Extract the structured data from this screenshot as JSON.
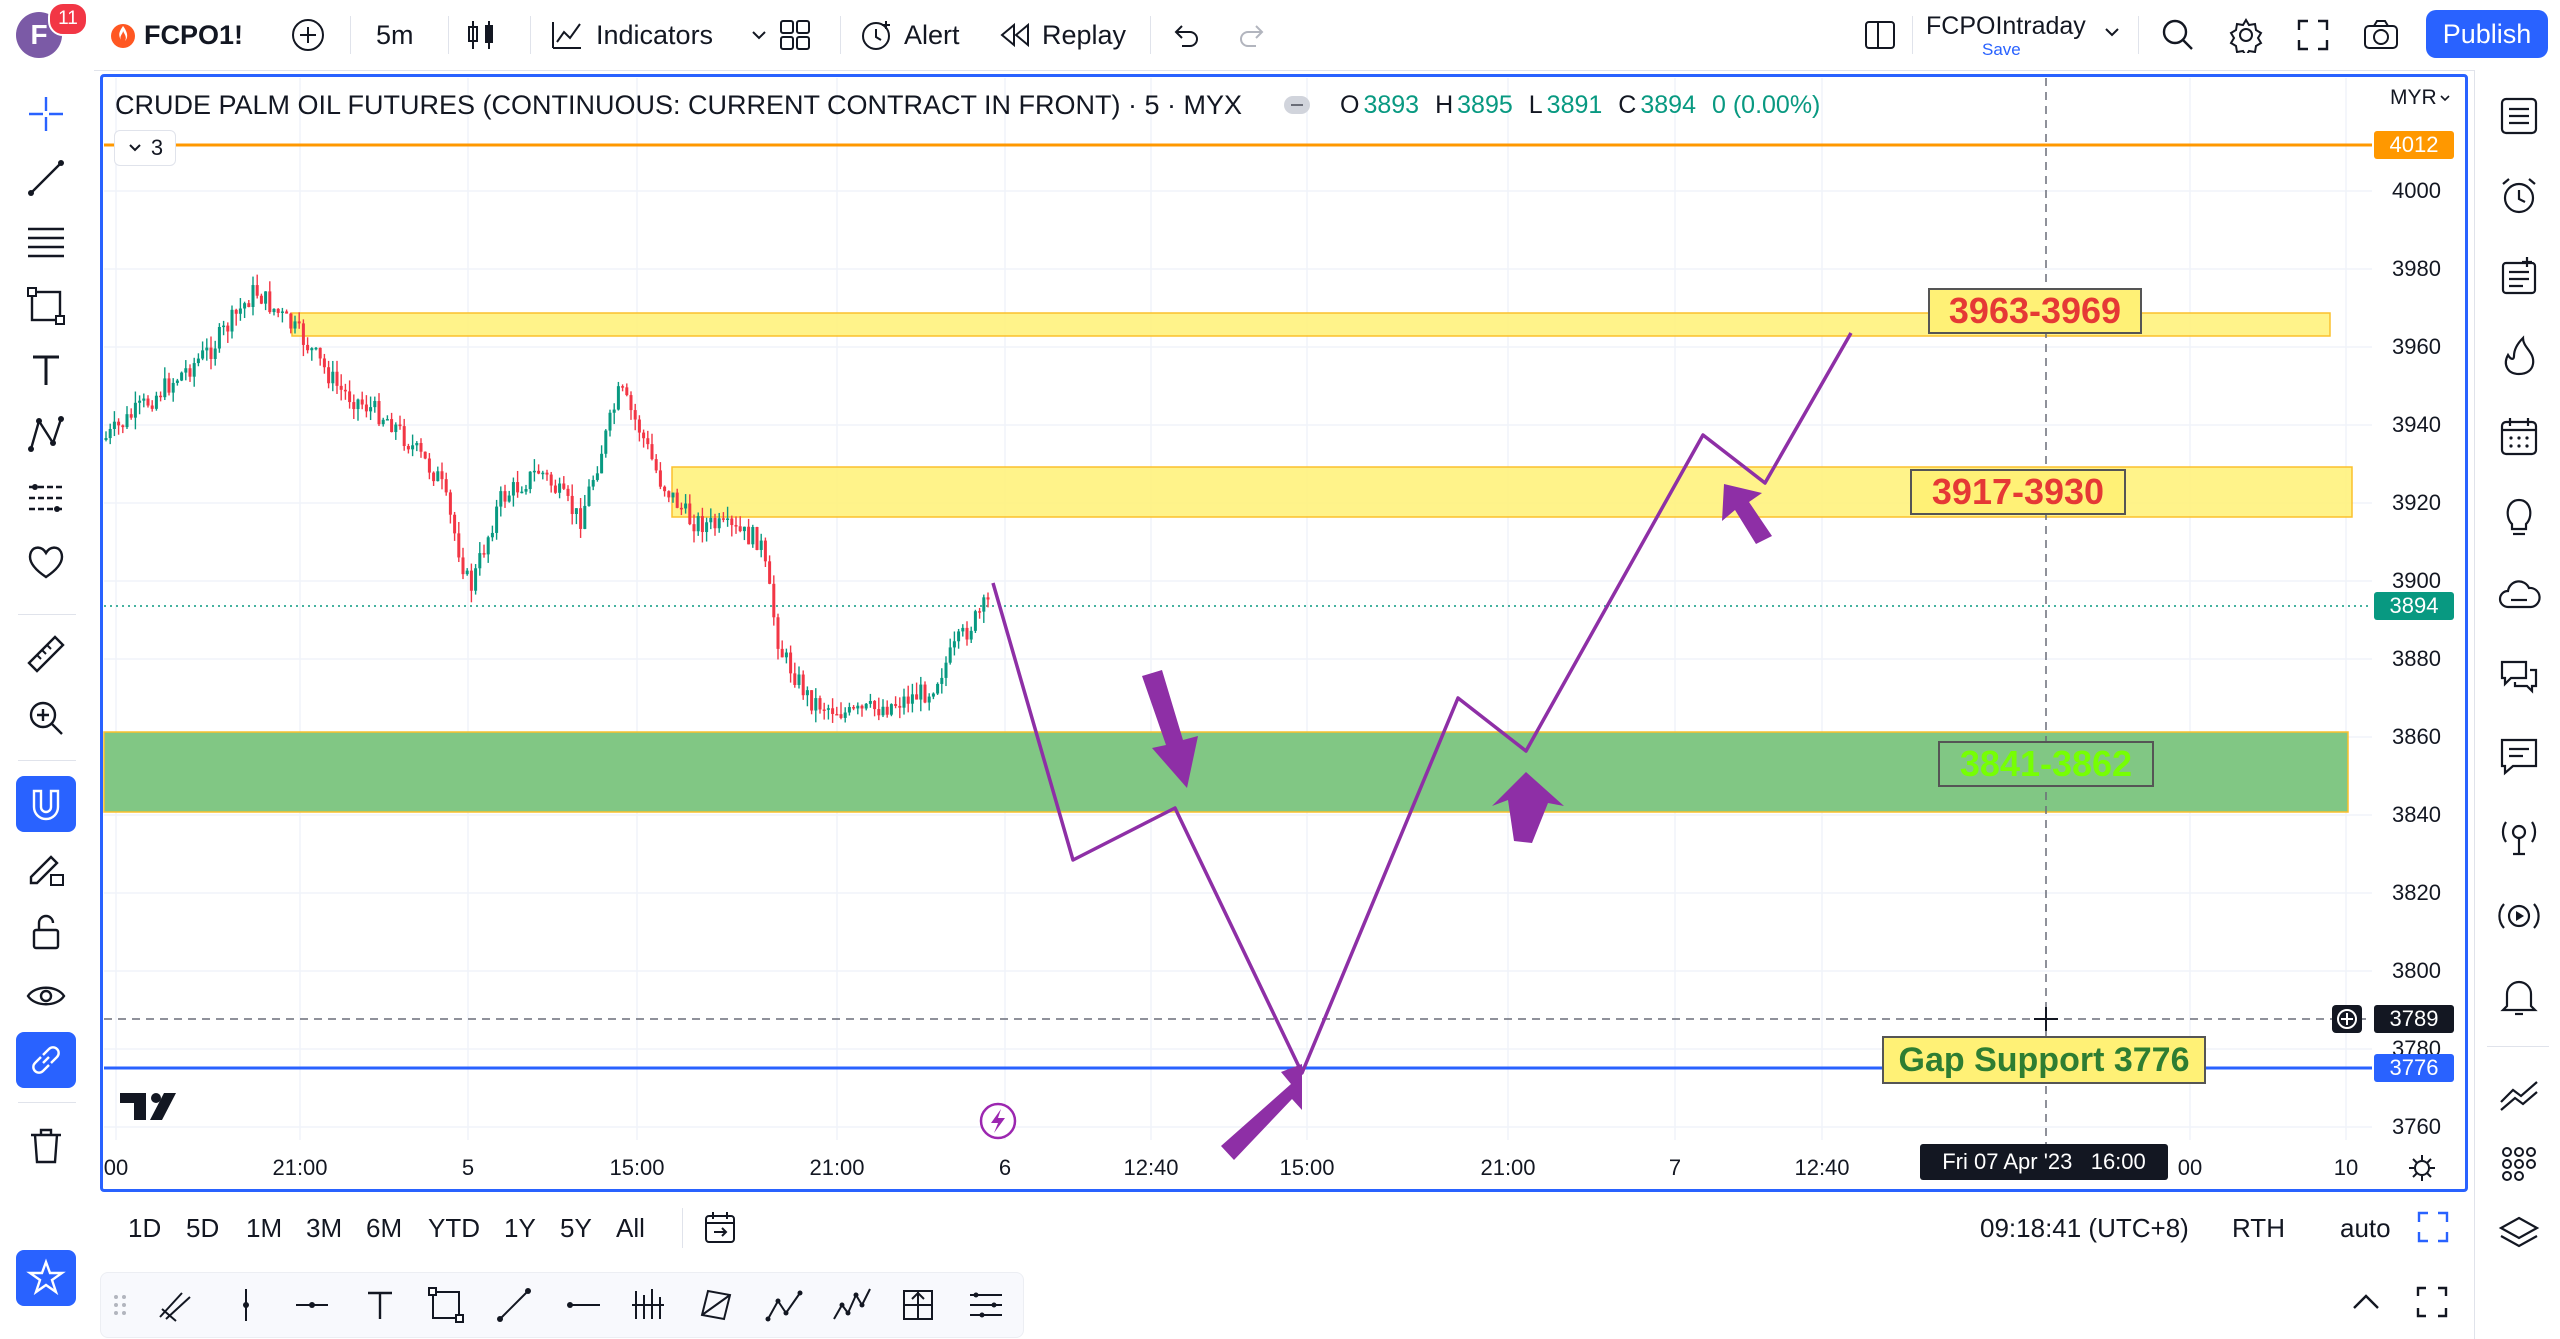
{
  "topbar": {
    "avatar_letter": "F",
    "notification_count": "11",
    "symbol": "FCPO1!",
    "interval": "5m",
    "indicators_label": "Indicators",
    "alert_label": "Alert",
    "replay_label": "Replay",
    "layout_name": "FCPOIntraday",
    "layout_save": "Save",
    "publish_label": "Publish"
  },
  "legend": {
    "symbol_title": "CRUDE PALM OIL FUTURES (CONTINUOUS: CURRENT CONTRACT IN FRONT) · 5 · MYX",
    "o_key": "O",
    "o_val": "3893",
    "h_key": "H",
    "h_val": "3895",
    "l_key": "L",
    "l_val": "3891",
    "c_key": "C",
    "c_val": "3894",
    "change": "0 (0.00%)",
    "collapse_count": "3"
  },
  "price_axis": {
    "currency": "MYR",
    "ticks": [
      "4000",
      "3980",
      "3960",
      "3940",
      "3920",
      "3900",
      "3880",
      "3860",
      "3840",
      "3820",
      "3800",
      "3780",
      "3760"
    ]
  },
  "price_tags": {
    "top_line": "4012",
    "current": "3894",
    "crosshair": "3789",
    "gap_line": "3776"
  },
  "time_axis": {
    "ticks": [
      "00",
      "21:00",
      "5",
      "15:00",
      "21:00",
      "6",
      "12:40",
      "15:00",
      "21:00",
      "7",
      "12:40",
      "00",
      "10"
    ],
    "crosshair_label": "Fri 07 Apr '23   16:00"
  },
  "zones": {
    "upper": "3963-3969",
    "middle": "3917-3930",
    "lower": "3841-3862",
    "gap": "Gap Support 3776"
  },
  "colors": {
    "accent": "#2962ff",
    "zone_yellow": "#fff176",
    "zone_green": "#81c784",
    "zone_text_red": "#e53935",
    "zone_text_green": "#76ff03",
    "path_purple": "#8e2fa6",
    "top_line_orange": "#ff9800",
    "up_candle": "#089981",
    "down_candle": "#f23645"
  },
  "rangebar": {
    "ranges": [
      "1D",
      "5D",
      "1M",
      "3M",
      "6M",
      "YTD",
      "1Y",
      "5Y",
      "All"
    ],
    "clock": "09:18:41 (UTC+8)",
    "session": "RTH",
    "scale": "auto"
  }
}
